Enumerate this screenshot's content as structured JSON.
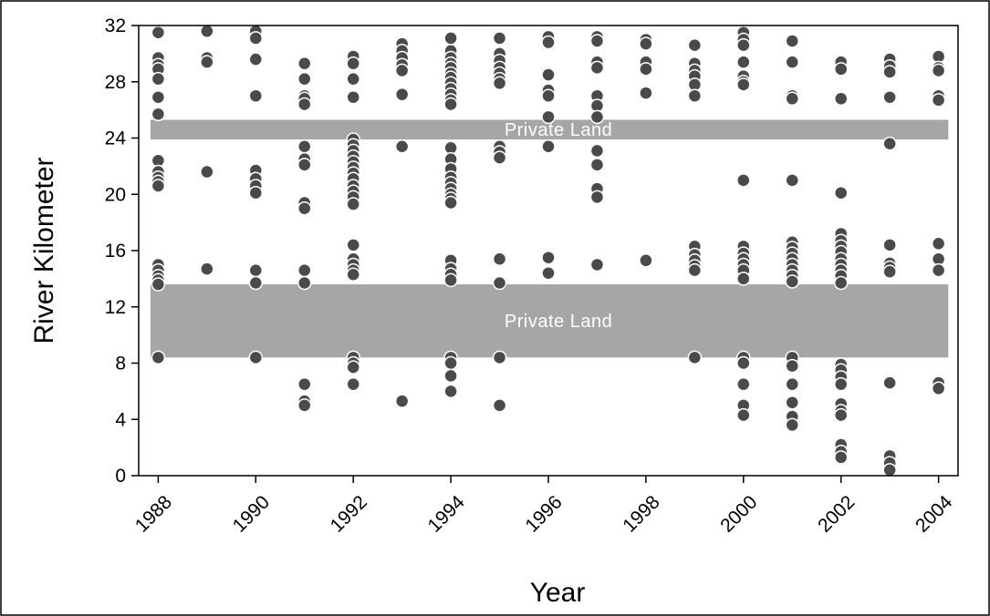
{
  "chart_data": {
    "type": "scatter",
    "xlabel": "Year",
    "ylabel": "River Kilometer",
    "xlim": [
      1987.6,
      2004.4
    ],
    "ylim": [
      0,
      32
    ],
    "x_ticks": [
      "1988",
      "1990",
      "1992",
      "1994",
      "1996",
      "1998",
      "2000",
      "2002",
      "2004"
    ],
    "y_ticks": [
      "0",
      "4",
      "8",
      "12",
      "16",
      "20",
      "24",
      "28",
      "32"
    ],
    "grid": false,
    "bands": [
      {
        "label": "Private Land",
        "y_from": 23.9,
        "y_to": 25.3,
        "color": "#a6a6a6"
      },
      {
        "label": "Private Land",
        "y_from": 8.4,
        "y_to": 13.6,
        "color": "#a6a6a6"
      }
    ],
    "marker_color": "#4a4a4a",
    "points": [
      {
        "year": 1988,
        "km": [
          31.5,
          29.7,
          29.2,
          28.9,
          28.2,
          26.9,
          25.7,
          22.4,
          21.6,
          21.2,
          20.9,
          20.6,
          15.0,
          14.6,
          14.2,
          13.9,
          13.6,
          8.4
        ]
      },
      {
        "year": 1989,
        "km": [
          31.6,
          29.7,
          29.4,
          21.6,
          14.7
        ]
      },
      {
        "year": 1990,
        "km": [
          31.6,
          31.1,
          29.6,
          27.0,
          21.7,
          21.1,
          20.6,
          20.1,
          14.6,
          13.7,
          8.4
        ]
      },
      {
        "year": 1991,
        "km": [
          29.3,
          28.2,
          27.0,
          26.8,
          26.4,
          23.4,
          22.5,
          22.1,
          19.4,
          19.0,
          14.6,
          13.7,
          6.5,
          5.3,
          5.0
        ]
      },
      {
        "year": 1992,
        "km": [
          29.8,
          29.3,
          28.2,
          26.9,
          23.9,
          23.5,
          23.1,
          22.7,
          22.3,
          21.9,
          21.5,
          21.1,
          20.6,
          20.2,
          19.8,
          19.3,
          16.4,
          15.4,
          15.0,
          14.6,
          14.3,
          8.4,
          8.0,
          7.7,
          6.5
        ]
      },
      {
        "year": 1993,
        "km": [
          30.7,
          30.2,
          29.7,
          29.2,
          28.8,
          27.1,
          23.4,
          5.3
        ]
      },
      {
        "year": 1994,
        "km": [
          31.1,
          30.2,
          29.7,
          29.3,
          29.0,
          28.6,
          28.3,
          27.9,
          27.5,
          27.1,
          26.7,
          26.4,
          23.3,
          22.5,
          21.8,
          21.2,
          20.8,
          20.4,
          20.0,
          19.7,
          19.4,
          15.3,
          14.7,
          14.3,
          13.9,
          8.4,
          8.0,
          7.1,
          6.0
        ]
      },
      {
        "year": 1995,
        "km": [
          31.1,
          30.0,
          29.5,
          29.0,
          28.6,
          28.2,
          27.9,
          23.4,
          23.0,
          22.6,
          15.4,
          13.7,
          8.4,
          5.0
        ]
      },
      {
        "year": 1996,
        "km": [
          31.2,
          30.8,
          28.5,
          27.4,
          27.0,
          25.5,
          23.4,
          15.5,
          14.4
        ]
      },
      {
        "year": 1997,
        "km": [
          31.2,
          30.9,
          29.4,
          29.0,
          27.0,
          26.3,
          25.5,
          23.1,
          22.1,
          20.4,
          19.8,
          15.0
        ]
      },
      {
        "year": 1998,
        "km": [
          31.0,
          30.7,
          29.4,
          28.9,
          27.2,
          15.3
        ]
      },
      {
        "year": 1999,
        "km": [
          30.6,
          29.3,
          28.8,
          28.4,
          27.8,
          27.0,
          16.3,
          15.7,
          15.3,
          14.9,
          14.6,
          8.4
        ]
      },
      {
        "year": 2000,
        "km": [
          31.5,
          31.0,
          30.6,
          29.4,
          28.4,
          28.0,
          27.8,
          21.0,
          16.3,
          15.8,
          15.4,
          15.0,
          14.6,
          14.0,
          8.4,
          8.0,
          6.5,
          5.0,
          4.3
        ]
      },
      {
        "year": 2001,
        "km": [
          30.9,
          29.4,
          27.0,
          26.8,
          21.0,
          16.6,
          16.2,
          15.8,
          15.4,
          15.0,
          14.6,
          14.2,
          13.8,
          8.4,
          7.8,
          6.5,
          5.2,
          4.2,
          3.6
        ]
      },
      {
        "year": 2002,
        "km": [
          29.4,
          28.9,
          26.8,
          20.1,
          17.2,
          16.7,
          16.3,
          15.9,
          15.4,
          15.0,
          14.6,
          14.2,
          13.7,
          7.9,
          7.5,
          7.0,
          6.5,
          5.1,
          4.6,
          4.3,
          2.2,
          1.7,
          1.3
        ]
      },
      {
        "year": 2003,
        "km": [
          29.6,
          29.1,
          28.7,
          26.9,
          23.6,
          16.4,
          15.1,
          14.8,
          14.5,
          6.6,
          1.4,
          0.9,
          0.4
        ]
      },
      {
        "year": 2004,
        "km": [
          29.8,
          29.0,
          28.8,
          27.0,
          26.7,
          16.5,
          15.4,
          14.6,
          6.6,
          6.2
        ]
      }
    ]
  }
}
